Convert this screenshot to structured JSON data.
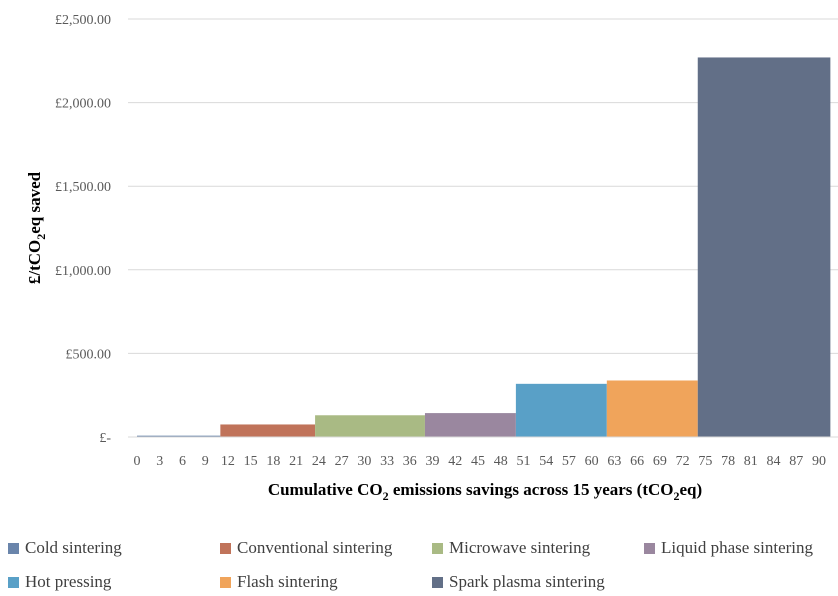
{
  "chart_data": {
    "type": "bar",
    "subtype": "variable-width step bar (cost curve)",
    "title": "",
    "xlabel": {
      "pre": "Cumulative CO",
      "sub": "2",
      "post": " emissions savings across 15 years (tCO",
      "sub2": "2",
      "post2": "eq)"
    },
    "ylabel": {
      "pre": "£/tCO",
      "sub": "2",
      "post": "eq saved"
    },
    "xlim": [
      0,
      90
    ],
    "ylim": [
      0,
      2500
    ],
    "y_ticks": [
      0,
      500,
      1000,
      1500,
      2000,
      2500
    ],
    "y_tick_labels": [
      "£-",
      "£500.00",
      "£1,000.00",
      "£1,500.00",
      "£2,000.00",
      "£2,500.00"
    ],
    "x_ticks": [
      0,
      3,
      6,
      9,
      12,
      15,
      18,
      21,
      24,
      27,
      30,
      33,
      36,
      39,
      42,
      45,
      48,
      51,
      54,
      57,
      60,
      63,
      66,
      69,
      72,
      75,
      78,
      81,
      84,
      87,
      90
    ],
    "x_tick_labels": [
      "0",
      "3",
      "6",
      "9",
      "12",
      "15",
      "18",
      "21",
      "24",
      "27",
      "30",
      "33",
      "36",
      "39",
      "42",
      "45",
      "48",
      "51",
      "54",
      "57",
      "60",
      "63",
      "66",
      "69",
      "72",
      "75",
      "78",
      "81",
      "84",
      "87",
      "90"
    ],
    "grid": true,
    "legend_position": "bottom",
    "series": [
      {
        "name": "Cold sintering",
        "x_start": 0,
        "x_end": 11,
        "value": 8,
        "color": "#6a85ab"
      },
      {
        "name": "Conventional sintering",
        "x_start": 11,
        "x_end": 23.5,
        "value": 75,
        "color": "#c0735a"
      },
      {
        "name": "Microwave sintering",
        "x_start": 23.5,
        "x_end": 38,
        "value": 130,
        "color": "#a9ba84"
      },
      {
        "name": "Liquid phase sintering",
        "x_start": 38,
        "x_end": 50,
        "value": 143,
        "color": "#9a879f"
      },
      {
        "name": "Hot pressing",
        "x_start": 50,
        "x_end": 62,
        "value": 318,
        "color": "#59a0c7"
      },
      {
        "name": "Flash sintering",
        "x_start": 62,
        "x_end": 74,
        "value": 338,
        "color": "#f0a45b"
      },
      {
        "name": "Spark plasma sintering",
        "x_start": 74,
        "x_end": 91.5,
        "value": 2270,
        "color": "#626f87"
      }
    ]
  }
}
